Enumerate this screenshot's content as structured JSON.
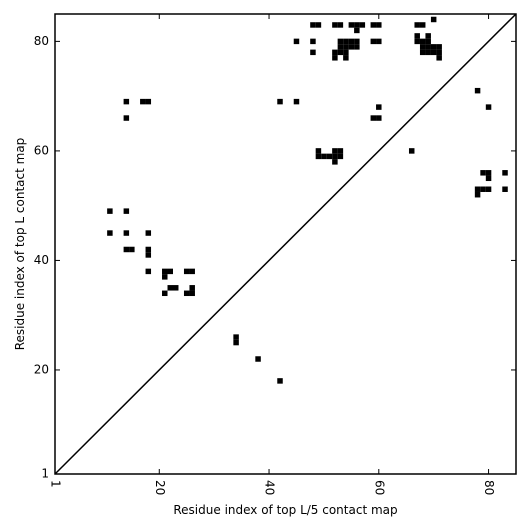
{
  "chart_data": {
    "type": "heatmap",
    "title": "",
    "xlabel": "Residue index of top L/5 contact map",
    "ylabel": "Residue index of top L contact map",
    "xlim": [
      1,
      85
    ],
    "ylim": [
      1,
      85
    ],
    "x_ticks": [
      1,
      20,
      40,
      60,
      80
    ],
    "x_tick_labels": [
      "1",
      "20",
      "40",
      "60",
      "80"
    ],
    "y_ticks": [
      1,
      20,
      40,
      60,
      80
    ],
    "y_tick_labels": [
      "1",
      "20",
      "40",
      "60",
      "80"
    ],
    "x_tick_label_rotation": -90,
    "grid": false,
    "legend": "none",
    "diagonal_line": true,
    "colors": {
      "contact": "#000000",
      "background": "#ffffff",
      "axes": "#000000"
    },
    "contacts": [
      [
        48,
        83
      ],
      [
        49,
        83
      ],
      [
        52,
        83
      ],
      [
        53,
        83
      ],
      [
        55,
        83
      ],
      [
        56,
        83
      ],
      [
        57,
        83
      ],
      [
        59,
        83
      ],
      [
        60,
        83
      ],
      [
        67,
        83
      ],
      [
        68,
        83
      ],
      [
        70,
        84
      ],
      [
        56,
        82
      ],
      [
        67,
        81
      ],
      [
        69,
        81
      ],
      [
        45,
        80
      ],
      [
        48,
        80
      ],
      [
        53,
        80
      ],
      [
        54,
        80
      ],
      [
        55,
        80
      ],
      [
        56,
        80
      ],
      [
        59,
        80
      ],
      [
        60,
        80
      ],
      [
        67,
        80
      ],
      [
        68,
        80
      ],
      [
        69,
        80
      ],
      [
        53,
        79
      ],
      [
        54,
        79
      ],
      [
        55,
        79
      ],
      [
        56,
        79
      ],
      [
        68,
        79
      ],
      [
        69,
        79
      ],
      [
        70,
        79
      ],
      [
        71,
        79
      ],
      [
        48,
        78
      ],
      [
        52,
        78
      ],
      [
        53,
        78
      ],
      [
        54,
        78
      ],
      [
        68,
        78
      ],
      [
        69,
        78
      ],
      [
        70,
        78
      ],
      [
        71,
        78
      ],
      [
        52,
        77
      ],
      [
        54,
        77
      ],
      [
        71,
        77
      ],
      [
        78,
        71
      ],
      [
        14,
        69
      ],
      [
        17,
        69
      ],
      [
        18,
        69
      ],
      [
        42,
        69
      ],
      [
        45,
        69
      ],
      [
        60,
        68
      ],
      [
        80,
        68
      ],
      [
        14,
        66
      ],
      [
        59,
        66
      ],
      [
        60,
        66
      ],
      [
        49,
        60
      ],
      [
        52,
        60
      ],
      [
        53,
        60
      ],
      [
        66,
        60
      ],
      [
        49,
        59
      ],
      [
        50,
        59
      ],
      [
        51,
        59
      ],
      [
        52,
        59
      ],
      [
        53,
        59
      ],
      [
        52,
        58
      ],
      [
        79,
        56
      ],
      [
        80,
        56
      ],
      [
        83,
        56
      ],
      [
        80,
        55
      ],
      [
        78,
        53
      ],
      [
        79,
        53
      ],
      [
        80,
        53
      ],
      [
        83,
        53
      ],
      [
        78,
        52
      ],
      [
        11,
        49
      ],
      [
        14,
        49
      ],
      [
        11,
        45
      ],
      [
        14,
        45
      ],
      [
        18,
        45
      ],
      [
        14,
        42
      ],
      [
        15,
        42
      ],
      [
        18,
        42
      ],
      [
        18,
        41
      ],
      [
        18,
        38
      ],
      [
        21,
        38
      ],
      [
        22,
        38
      ],
      [
        25,
        38
      ],
      [
        26,
        38
      ],
      [
        21,
        37
      ],
      [
        22,
        35
      ],
      [
        23,
        35
      ],
      [
        26,
        35
      ],
      [
        21,
        34
      ],
      [
        25,
        34
      ],
      [
        26,
        34
      ],
      [
        34,
        26
      ],
      [
        34,
        25
      ],
      [
        38,
        22
      ],
      [
        42,
        18
      ]
    ]
  }
}
